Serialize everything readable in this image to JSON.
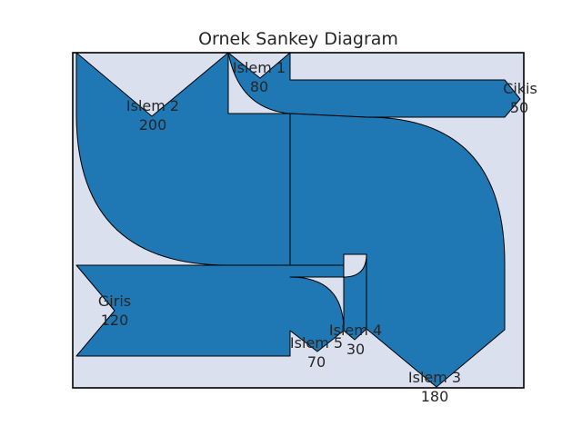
{
  "colors": {
    "flow_fill": "#1f77b4",
    "flow_stroke": "#000000",
    "axes_background": "#dbe0ee"
  },
  "chart_data": {
    "type": "sankey",
    "title": "Ornek Sankey Diagram",
    "nodes": [
      {
        "name": "Islem 1",
        "value": "80"
      },
      {
        "name": "Islem 2",
        "value": "200"
      },
      {
        "name": "Cikis",
        "value": "50"
      },
      {
        "name": "Giris",
        "value": "120"
      },
      {
        "name": "Islem 5",
        "value": "70"
      },
      {
        "name": "Islem 4",
        "value": "30"
      },
      {
        "name": "Islem 3",
        "value": "180"
      }
    ],
    "grid": false,
    "legend": "none"
  }
}
